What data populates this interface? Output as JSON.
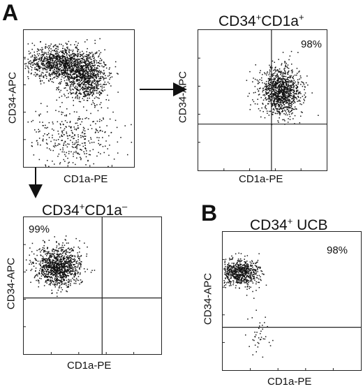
{
  "panels": [
    {
      "label": "A"
    },
    {
      "label": "B"
    }
  ],
  "colors": {
    "dot": "#111111",
    "axis": "#222222",
    "background": "#ffffff"
  },
  "chart_data": [
    {
      "type": "scatter",
      "id": "A-source",
      "title": "",
      "xlabel": "CD1a-PE",
      "ylabel": "CD34-APC",
      "axis_scale": "log",
      "clusters": [
        {
          "name": "CD34+CD1a+",
          "cx": 0.55,
          "cy": 0.33,
          "sx": 0.1,
          "sy": 0.09,
          "n": 1000
        },
        {
          "name": "CD34+CD1a-",
          "cx": 0.3,
          "cy": 0.24,
          "sx": 0.13,
          "sy": 0.06,
          "n": 900
        },
        {
          "name": "CD34- low",
          "cx": 0.45,
          "cy": 0.78,
          "sx": 0.2,
          "sy": 0.11,
          "n": 350
        }
      ],
      "quadrant": null,
      "percent": null
    },
    {
      "type": "scatter",
      "id": "A-CD34+CD1a+",
      "title": {
        "main": "CD34",
        "sup1": "+",
        "mid": "CD1a",
        "sup2": "+"
      },
      "xlabel": "CD1a-PE",
      "ylabel": "CD34-APC",
      "axis_scale": "log",
      "clusters": [
        {
          "name": "CD34+CD1a+",
          "cx": 0.64,
          "cy": 0.43,
          "sx": 0.08,
          "sy": 0.08,
          "n": 1100
        }
      ],
      "quadrant": {
        "x": 0.57,
        "y": 0.67
      },
      "percent": "98%"
    },
    {
      "type": "scatter",
      "id": "A-CD34+CD1a-",
      "title": {
        "main": "CD34",
        "sup1": "+",
        "mid": "CD1a",
        "sup2": "–"
      },
      "xlabel": "CD1a-PE",
      "ylabel": "CD34-APC",
      "axis_scale": "log",
      "clusters": [
        {
          "name": "CD34+CD1a-",
          "cx": 0.25,
          "cy": 0.36,
          "sx": 0.08,
          "sy": 0.07,
          "n": 1100
        }
      ],
      "quadrant": {
        "x": 0.57,
        "y": 0.59
      },
      "percent": "99%"
    },
    {
      "type": "scatter",
      "id": "B-CD34+UCB",
      "title": {
        "main": "CD34",
        "sup1": "+",
        "mid": " UCB",
        "sup2": ""
      },
      "xlabel": "CD1a-PE",
      "ylabel": "CD34-APC",
      "axis_scale": "log",
      "clusters": [
        {
          "name": "CD34+ UCB",
          "cx": 0.12,
          "cy": 0.29,
          "sx": 0.07,
          "sy": 0.05,
          "n": 700
        },
        {
          "name": "CD34- low",
          "cx": 0.25,
          "cy": 0.76,
          "sx": 0.04,
          "sy": 0.08,
          "n": 40
        }
      ],
      "quadrant": {
        "x": null,
        "y": 0.69
      },
      "percent": "98%"
    }
  ]
}
